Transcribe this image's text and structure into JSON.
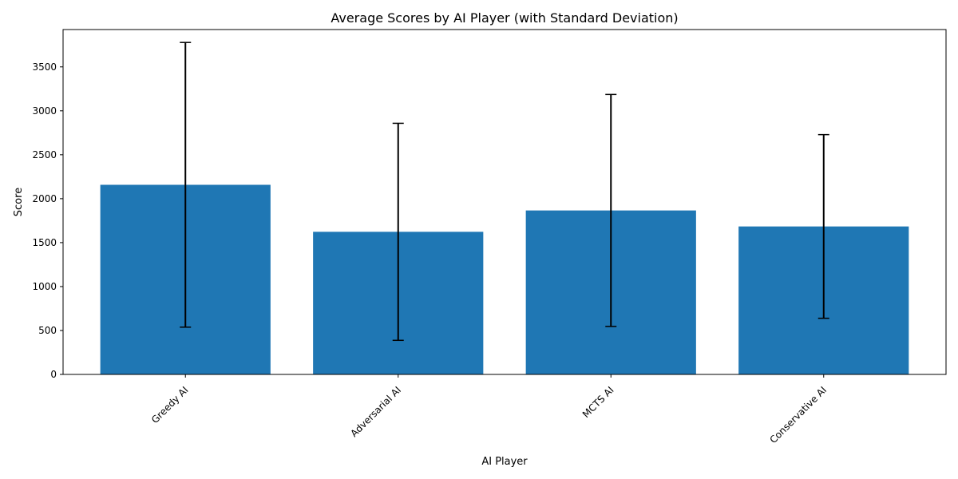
{
  "chart_data": {
    "type": "bar",
    "title": "Average Scores by AI Player (with Standard Deviation)",
    "xlabel": "AI Player",
    "ylabel": "Score",
    "categories": [
      "Greedy AI",
      "Adversarial AI",
      "MCTS AI",
      "Conservative AI"
    ],
    "values": [
      2158,
      1623,
      1866,
      1684
    ],
    "errors": [
      1620,
      1235,
      1320,
      1045
    ],
    "ylim": [
      0,
      3925
    ],
    "yticks": [
      0,
      500,
      1000,
      1500,
      2000,
      2500,
      3000,
      3500
    ],
    "colors": {
      "bar": "#1f77b4",
      "error": "#000000"
    },
    "grid": false
  }
}
